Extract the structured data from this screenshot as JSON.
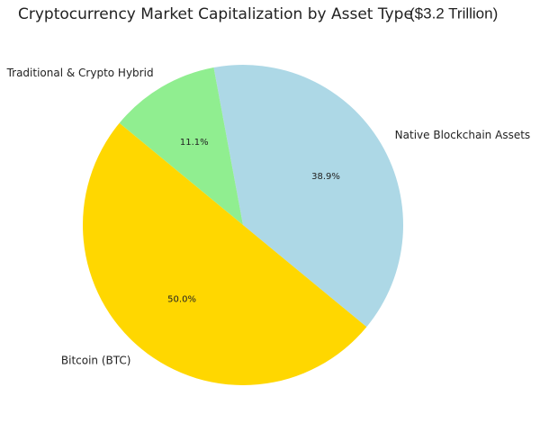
{
  "chart_data": {
    "type": "pie",
    "title": "Cryptocurrency Market Capitalization by Asset Type",
    "subtitle": "($3.2 Trillion)",
    "categories": [
      "Native Blockchain Assets",
      "Traditional & Crypto Hybrid",
      "Bitcoin (BTC)"
    ],
    "values": [
      38.9,
      11.1,
      50
    ],
    "value_labels": [
      "38.9%",
      "11.1%",
      "50.0%"
    ],
    "colors": [
      "#add8e6",
      "#90ee90",
      "#ffd700"
    ]
  }
}
